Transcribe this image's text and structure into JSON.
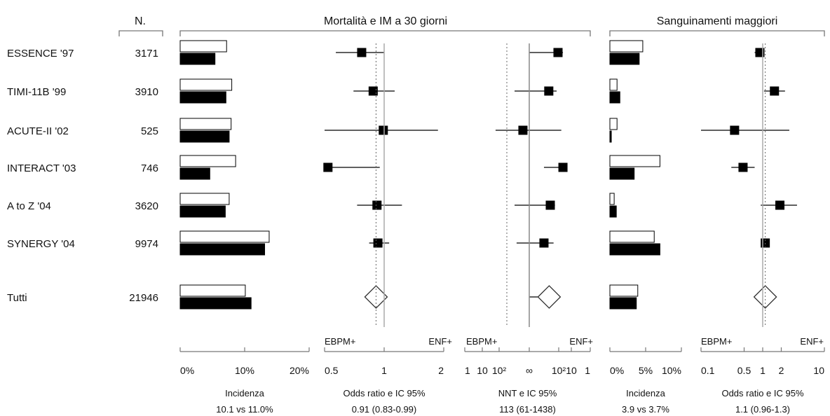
{
  "headers": {
    "n": "N.",
    "mortality": "Mortalità e IM a 30 giorni",
    "bleeding": "Sanguinamenti maggiori"
  },
  "trials": [
    {
      "name": "ESSENCE '97",
      "n": "3171",
      "mort_inc": [
        7.2,
        5.4
      ],
      "mort_or": [
        0.77,
        0.57,
        1.0
      ],
      "mort_nnt": [
        -43,
        -25,
        1000000
      ],
      "bleed_inc": [
        4.6,
        4.1
      ],
      "bleed_or": [
        0.9,
        0.74,
        1.05
      ]
    },
    {
      "name": "TIMI-11B '99",
      "n": "3910",
      "mort_inc": [
        8.0,
        7.1
      ],
      "mort_or": [
        0.88,
        0.7,
        1.13
      ],
      "mort_nnt": [
        -118,
        -50,
        200
      ],
      "bleed_inc": [
        1.0,
        1.4
      ],
      "bleed_or": [
        1.55,
        1.05,
        2.3
      ]
    },
    {
      "name": "ACUTE-II '02",
      "n": "525",
      "mort_inc": [
        7.9,
        7.6
      ],
      "mort_or": [
        0.99,
        0.49,
        1.87
      ],
      "mort_nnt": [
        500,
        -30,
        25
      ],
      "bleed_inc": [
        1.0,
        0.2
      ],
      "bleed_or": [
        0.35,
        0.1,
        2.7
      ]
    },
    {
      "name": "INTERACT '03",
      "n": "746",
      "mort_inc": [
        8.6,
        4.6
      ],
      "mort_or": [
        0.52,
        0.52,
        0.95
      ],
      "mort_nnt": [
        -25,
        -20,
        -200
      ],
      "bleed_inc": [
        7.0,
        3.4
      ],
      "bleed_or": [
        0.48,
        0.31,
        0.74
      ]
    },
    {
      "name": "A to Z '04",
      "n": "3620",
      "mort_inc": [
        7.6,
        7.0
      ],
      "mort_or": [
        0.92,
        0.73,
        1.23
      ],
      "mort_nnt": [
        -100,
        -60,
        200
      ],
      "bleed_inc": [
        0.6,
        0.9
      ],
      "bleed_or": [
        1.9,
        0.93,
        3.6
      ]
    },
    {
      "name": "SYNERGY '04",
      "n": "9974",
      "mort_inc": [
        13.8,
        13.1
      ],
      "mort_or": [
        0.93,
        0.84,
        1.06
      ],
      "mort_nnt": [
        -200,
        -70,
        250
      ],
      "bleed_inc": [
        6.2,
        7.0
      ],
      "bleed_or": [
        1.1,
        1.0,
        1.25
      ]
    }
  ],
  "overall": {
    "name": "Tutti",
    "n": "21946",
    "mort_inc": [
      10.1,
      11.0
    ],
    "mort_or": [
      0.91,
      0.83,
      0.99
    ],
    "mort_nnt": [
      -113,
      -61,
      -1438
    ],
    "bleed_inc": [
      3.9,
      3.7
    ],
    "bleed_or": [
      1.1,
      0.96,
      1.3
    ]
  },
  "direction_labels": {
    "left": "EBPM+",
    "right": "ENF+"
  },
  "chart_data": [
    {
      "type": "bar",
      "title": "",
      "xlabel": "Incidenza",
      "xlim": [
        0,
        20
      ],
      "ticks": [
        "0%",
        "10%",
        "20%"
      ],
      "summary": "10.1 vs 11.0%",
      "series_colors": {
        "first": "#ffffff",
        "second": "#000000"
      }
    },
    {
      "type": "scatter",
      "title": "",
      "xlabel": "Odds ratio e IC 95%",
      "scale": "log",
      "xlim": [
        0.5,
        2
      ],
      "ticks": [
        "0.5",
        "1",
        "2"
      ],
      "reference": 1,
      "summary": "0.91 (0.83-0.99)"
    },
    {
      "type": "scatter",
      "title": "",
      "xlabel": "NNT e IC 95%",
      "scale": "reciprocal",
      "ticks": [
        "1",
        "10",
        "10²",
        "∞",
        "10²",
        "10",
        "1"
      ],
      "reference": "∞",
      "summary": "113 (61-1438)"
    },
    {
      "type": "bar",
      "title": "",
      "xlabel": "Incidenza",
      "xlim": [
        0,
        10
      ],
      "ticks": [
        "0%",
        "5%",
        "10%"
      ],
      "summary": "3.9 vs 3.7%"
    },
    {
      "type": "scatter",
      "title": "",
      "xlabel": "Odds ratio e IC 95%",
      "scale": "log",
      "xlim": [
        0.1,
        10
      ],
      "ticks": [
        "0.1",
        "0.5",
        "1",
        "2",
        "10"
      ],
      "reference": 1,
      "summary": "1.1 (0.96-1.3)"
    }
  ]
}
